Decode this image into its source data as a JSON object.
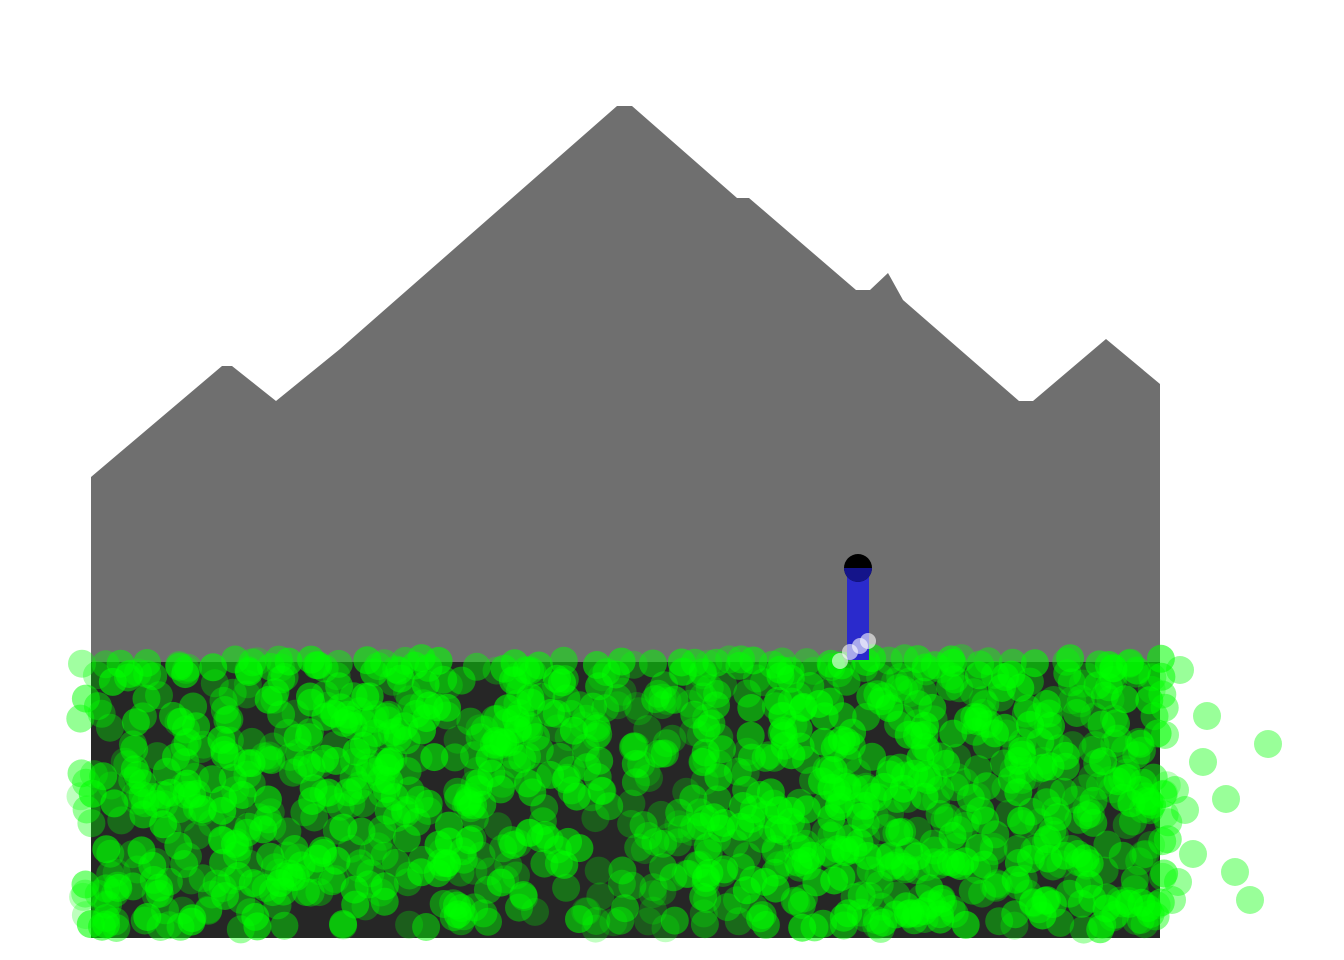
{
  "scene": {
    "background_color": "#ffffff",
    "mountain_color": "#6f6f6f",
    "ground_color": "#262626",
    "particle_color": "#00ff00",
    "agent": {
      "head_color": "#000000",
      "body_color": "#2a2acc",
      "foot_particle_color": "#ffffff"
    }
  }
}
